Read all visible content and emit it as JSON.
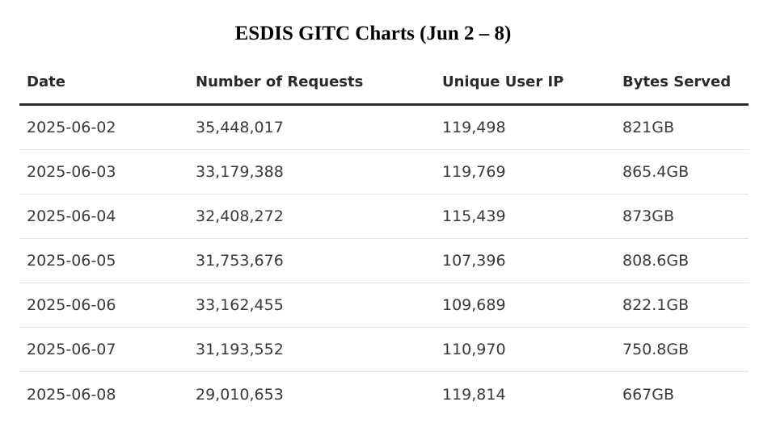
{
  "title": "ESDIS GITC Charts (Jun 2 – 8)",
  "table": {
    "headers": [
      "Date",
      "Number of Requests",
      "Unique User IP",
      "Bytes Served"
    ],
    "rows": [
      [
        "2025-06-02",
        "35,448,017",
        "119,498",
        "821GB"
      ],
      [
        "2025-06-03",
        "33,179,388",
        "119,769",
        "865.4GB"
      ],
      [
        "2025-06-04",
        "32,408,272",
        "115,439",
        "873GB"
      ],
      [
        "2025-06-05",
        "31,753,676",
        "107,396",
        "808.6GB"
      ],
      [
        "2025-06-06",
        "33,162,455",
        "109,689",
        "822.1GB"
      ],
      [
        "2025-06-07",
        "31,193,552",
        "110,970",
        "750.8GB"
      ],
      [
        "2025-06-08",
        "29,010,653",
        "119,814",
        "667GB"
      ]
    ]
  }
}
